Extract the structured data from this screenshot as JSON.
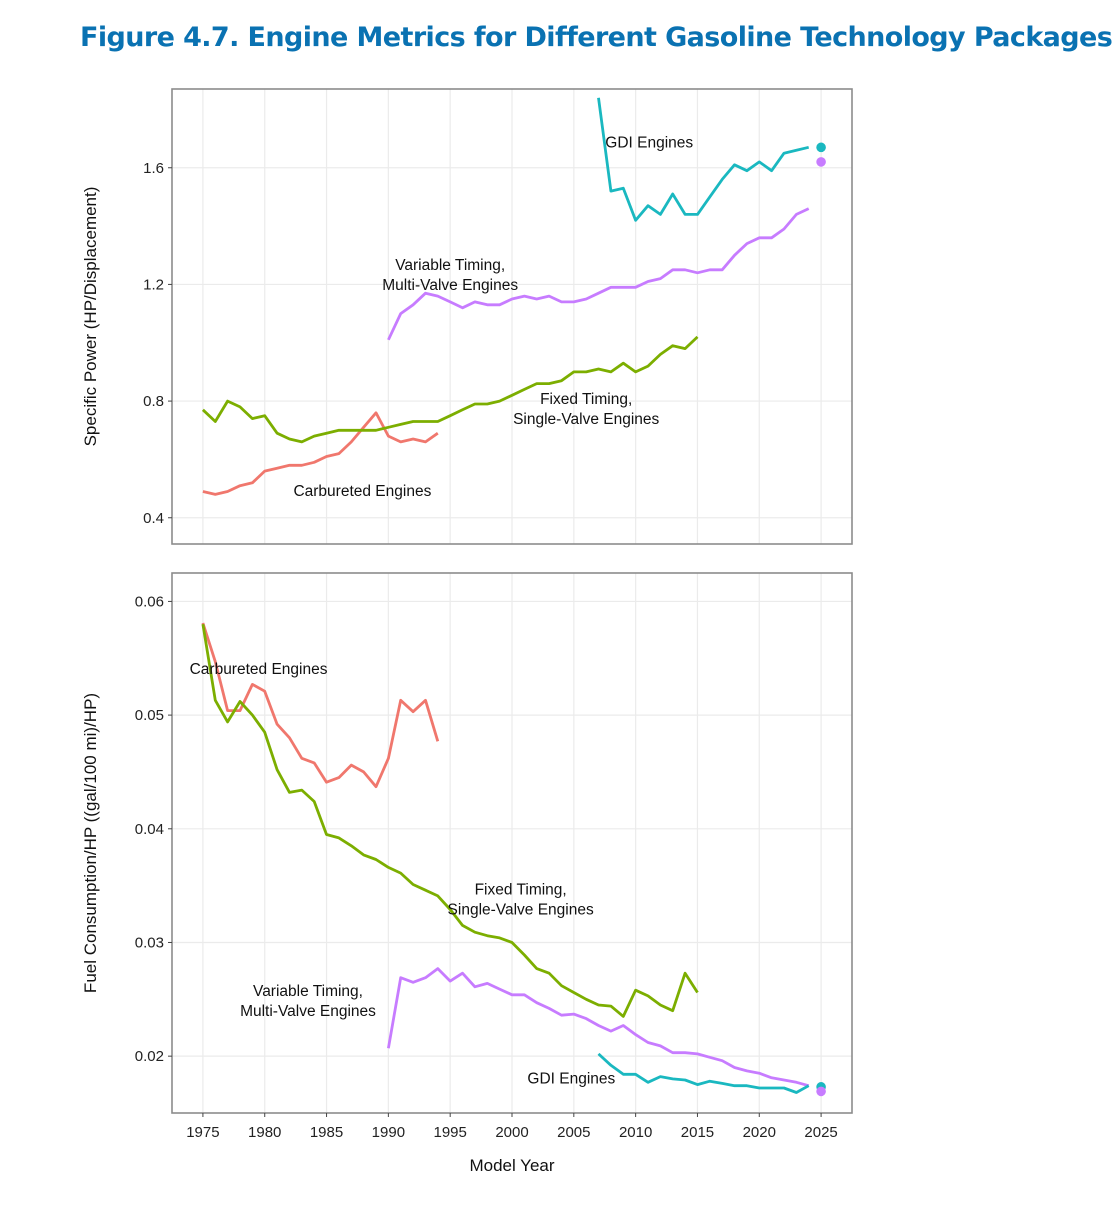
{
  "figure": {
    "title": "Figure 4.7. Engine Metrics for Different Gasoline Technology Packages"
  },
  "colors": {
    "Carbureted": "#f0776d",
    "Fixed": "#7cae00",
    "Variable": "#c77cff",
    "GDI": "#1ab8c0"
  },
  "chart_data": [
    {
      "type": "line",
      "title": "",
      "xlabel": "Model Year",
      "ylabel": "Specific Power (HP/Displacement)",
      "xlim": [
        1972.5,
        2027.5
      ],
      "ylim": [
        0.31,
        1.87
      ],
      "xticks": [
        1975,
        1980,
        1985,
        1990,
        1995,
        2000,
        2005,
        2010,
        2015,
        2020,
        2025
      ],
      "xtick_labels": [
        "1975",
        "1980",
        "1985",
        "1990",
        "1995",
        "2000",
        "2005",
        "2010",
        "2015",
        "2020",
        "2025"
      ],
      "yticks": [
        0.4,
        0.8,
        1.2,
        1.6
      ],
      "ytick_labels": [
        "0.4",
        "0.8",
        "1.2",
        "1.6"
      ],
      "grid": true,
      "series": [
        {
          "name": "Carbureted",
          "start": 1975,
          "values": [
            0.49,
            0.48,
            0.49,
            0.51,
            0.52,
            0.56,
            0.57,
            0.58,
            0.58,
            0.59,
            0.61,
            0.62,
            0.66,
            0.71,
            0.76,
            0.68,
            0.66,
            0.67,
            0.66,
            0.69
          ]
        },
        {
          "name": "Fixed",
          "start": 1975,
          "values": [
            0.77,
            0.73,
            0.8,
            0.78,
            0.74,
            0.75,
            0.69,
            0.67,
            0.66,
            0.68,
            0.69,
            0.7,
            0.7,
            0.7,
            0.7,
            0.71,
            0.72,
            0.73,
            0.73,
            0.73,
            0.75,
            0.77,
            0.79,
            0.79,
            0.8,
            0.82,
            0.84,
            0.86,
            0.86,
            0.87,
            0.9,
            0.9,
            0.91,
            0.9,
            0.93,
            0.9,
            0.92,
            0.96,
            0.99,
            0.98,
            1.02
          ]
        },
        {
          "name": "Variable",
          "start": 1990,
          "values": [
            1.01,
            1.1,
            1.13,
            1.17,
            1.16,
            1.14,
            1.12,
            1.14,
            1.13,
            1.13,
            1.15,
            1.16,
            1.15,
            1.16,
            1.14,
            1.14,
            1.15,
            1.17,
            1.19,
            1.19,
            1.19,
            1.21,
            1.22,
            1.25,
            1.25,
            1.24,
            1.25,
            1.25,
            1.3,
            1.34,
            1.36,
            1.36,
            1.39,
            1.44,
            1.46
          ]
        },
        {
          "name": "GDI",
          "start": 2007,
          "values": [
            1.84,
            1.52,
            1.53,
            1.42,
            1.47,
            1.44,
            1.51,
            1.44,
            1.44,
            1.5,
            1.56,
            1.61,
            1.59,
            1.62,
            1.59,
            1.65,
            1.66,
            1.67
          ]
        }
      ],
      "points": [
        {
          "name": "GDI",
          "x": 2025,
          "y": 1.67
        },
        {
          "name": "Variable",
          "x": 2025,
          "y": 1.62
        }
      ],
      "annotations": [
        {
          "lines": [
            "Carbureted Engines"
          ],
          "x": 1987.9,
          "y": 0.475
        },
        {
          "lines": [
            "Fixed Timing,",
            "Single-Valve Engines"
          ],
          "x": 2006,
          "y": 0.79
        },
        {
          "lines": [
            "Variable Timing,",
            "Multi-Valve Engines"
          ],
          "x": 1995,
          "y": 1.25
        },
        {
          "lines": [
            "GDI Engines"
          ],
          "x": 2011.1,
          "y": 1.67
        }
      ]
    },
    {
      "type": "line",
      "title": "",
      "xlabel": "Model Year",
      "ylabel": "Fuel Consumption/HP ((gal/100 mi)/HP)",
      "xlim": [
        1972.5,
        2027.5
      ],
      "ylim": [
        0.015,
        0.0625
      ],
      "xticks": [
        1975,
        1980,
        1985,
        1990,
        1995,
        2000,
        2005,
        2010,
        2015,
        2020,
        2025
      ],
      "xtick_labels": [
        "1975",
        "1980",
        "1985",
        "1990",
        "1995",
        "2000",
        "2005",
        "2010",
        "2015",
        "2020",
        "2025"
      ],
      "yticks": [
        0.02,
        0.03,
        0.04,
        0.05,
        0.06
      ],
      "ytick_labels": [
        "0.02",
        "0.03",
        "0.04",
        "0.05",
        "0.06"
      ],
      "grid": true,
      "series": [
        {
          "name": "Carbureted",
          "start": 1975,
          "values": [
            0.0581,
            0.0547,
            0.0504,
            0.0504,
            0.0527,
            0.0521,
            0.0492,
            0.048,
            0.0462,
            0.0458,
            0.0441,
            0.0445,
            0.0456,
            0.045,
            0.0437,
            0.0462,
            0.0513,
            0.0503,
            0.0513,
            0.0477
          ]
        },
        {
          "name": "Fixed",
          "start": 1975,
          "values": [
            0.058,
            0.0513,
            0.0494,
            0.0512,
            0.05,
            0.0485,
            0.0452,
            0.0432,
            0.0434,
            0.0424,
            0.0395,
            0.0392,
            0.0385,
            0.0377,
            0.0373,
            0.0366,
            0.0361,
            0.0351,
            0.0346,
            0.0341,
            0.0329,
            0.0315,
            0.0309,
            0.0306,
            0.0304,
            0.03,
            0.0289,
            0.0277,
            0.0273,
            0.0262,
            0.0256,
            0.025,
            0.0245,
            0.0244,
            0.0235,
            0.0258,
            0.0253,
            0.0245,
            0.024,
            0.0273,
            0.0256
          ]
        },
        {
          "name": "Variable",
          "start": 1990,
          "values": [
            0.0207,
            0.0269,
            0.0265,
            0.0269,
            0.0277,
            0.0266,
            0.0273,
            0.0261,
            0.0264,
            0.0259,
            0.0254,
            0.0254,
            0.0247,
            0.0242,
            0.0236,
            0.0237,
            0.0233,
            0.0227,
            0.0222,
            0.0227,
            0.0219,
            0.0212,
            0.0209,
            0.0203,
            0.0203,
            0.0202,
            0.0199,
            0.0196,
            0.019,
            0.0187,
            0.0185,
            0.0181,
            0.0179,
            0.0177,
            0.0174
          ]
        },
        {
          "name": "GDI",
          "start": 2007,
          "values": [
            0.0202,
            0.0192,
            0.0184,
            0.0184,
            0.0177,
            0.0182,
            0.018,
            0.0179,
            0.0175,
            0.0178,
            0.0176,
            0.0174,
            0.0174,
            0.0172,
            0.0172,
            0.0172,
            0.0168,
            0.0174
          ]
        }
      ],
      "points": [
        {
          "name": "GDI",
          "x": 2025,
          "y": 0.0173
        },
        {
          "name": "Variable",
          "x": 2025,
          "y": 0.0169
        }
      ],
      "annotations": [
        {
          "lines": [
            "Carbureted Engines"
          ],
          "x": 1979.5,
          "y": 0.0536
        },
        {
          "lines": [
            "Fixed Timing,",
            "Single-Valve Engines"
          ],
          "x": 2000.7,
          "y": 0.0342
        },
        {
          "lines": [
            "Variable Timing,",
            "Multi-Valve Engines"
          ],
          "x": 1983.5,
          "y": 0.0253
        },
        {
          "lines": [
            "GDI Engines"
          ],
          "x": 2004.8,
          "y": 0.0176
        }
      ]
    }
  ]
}
